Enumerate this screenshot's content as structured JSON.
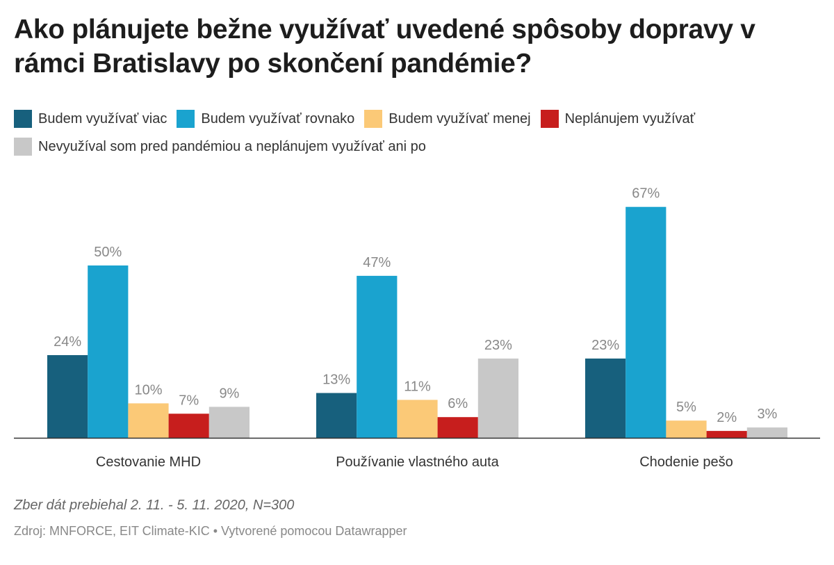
{
  "chart_data": {
    "type": "bar",
    "title": "Ako plánujete bežne využívať uvedené spôsoby dopravy v rámci Bratislavy po skončení pandémie?",
    "categories": [
      "Cestovanie MHD",
      "Používanie vlastného auta",
      "Chodenie pešo"
    ],
    "series": [
      {
        "name": "Budem využívať viac",
        "color": "#17607d",
        "values": [
          24,
          13,
          23
        ],
        "labels": [
          "24%",
          "13%",
          "23%"
        ]
      },
      {
        "name": "Budem využívať rovnako",
        "color": "#1aa3cf",
        "values": [
          50,
          47,
          67
        ],
        "labels": [
          "50%",
          "47%",
          "67%"
        ]
      },
      {
        "name": "Budem využívať menej",
        "color": "#fbc977",
        "values": [
          10,
          11,
          5
        ],
        "labels": [
          "10%",
          "11%",
          "5%"
        ]
      },
      {
        "name": "Neplánujem využívať",
        "color": "#c71e1d",
        "values": [
          7,
          6,
          2
        ],
        "labels": [
          "7%",
          "6%",
          "2%"
        ]
      },
      {
        "name": "Nevyužíval som pred pandémiou a neplánujem využívať ani po",
        "color": "#c8c8c8",
        "values": [
          9,
          23,
          3
        ],
        "labels": [
          "9%",
          "23%",
          "3%"
        ]
      }
    ],
    "unit": "%",
    "ylim": [
      0,
      67
    ],
    "grid": false,
    "legend": "top"
  },
  "notes": "Zber dát prebiehal 2. 11. - 5. 11. 2020, N=300",
  "source": "Zdroj: MNFORCE, EIT Climate-KIC • Vytvorené pomocou Datawrapper"
}
